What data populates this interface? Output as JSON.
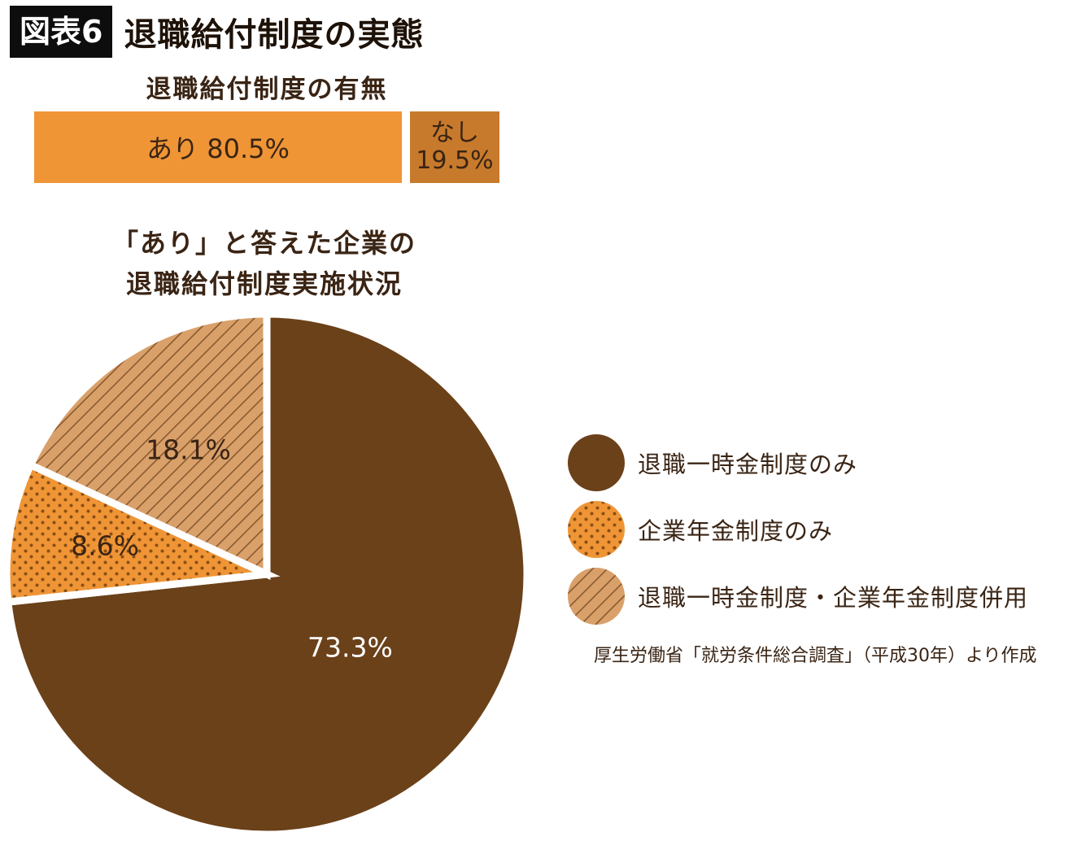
{
  "figure": {
    "badge": "図表6",
    "title": "退職給付制度の実態"
  },
  "colors": {
    "lump_sum": "#6b4119",
    "pension_base": "#ef9536",
    "pension_dot": "#8a4e14",
    "combined_base": "#d9a06a",
    "combined_hatch": "#8a5a2e",
    "bar_yes": "#ef9536",
    "bar_no": "#c77a2c"
  },
  "chart_data": [
    {
      "type": "bar",
      "title": "退職給付制度の有無",
      "orientation": "horizontal-stacked",
      "categories": [
        "あり",
        "なし"
      ],
      "values": [
        80.5,
        19.5
      ],
      "labels": [
        "あり 80.5%",
        "なし 19.5%"
      ],
      "unit": "%"
    },
    {
      "type": "pie",
      "title": "「あり」と答えた企業の 退職給付制度実施状況",
      "title_lines": [
        "「あり」と答えた企業の",
        "退職給付制度実施状況"
      ],
      "categories": [
        "退職一時金制度のみ",
        "企業年金制度のみ",
        "退職一時金制度・企業年金制度併用"
      ],
      "values": [
        73.3,
        8.6,
        18.1
      ],
      "labels": [
        "73.3%",
        "8.6%",
        "18.1%"
      ],
      "unit": "%",
      "legend_position": "right",
      "source": "厚生労働省「就労条件総合調査」（平成30年）より作成"
    }
  ]
}
